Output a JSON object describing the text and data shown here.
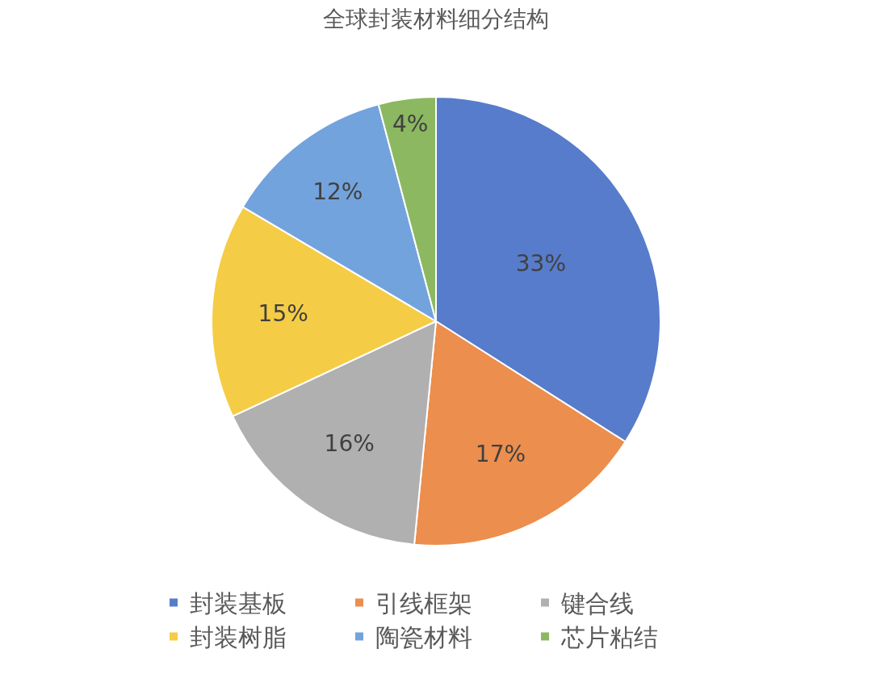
{
  "chart_data": {
    "type": "pie",
    "title": "全球封装材料细分结构",
    "categories": [
      "封装基板",
      "引线框架",
      "键合线",
      "封装树脂",
      "陶瓷材料",
      "芯片粘结"
    ],
    "values": [
      33,
      17,
      16,
      15,
      12,
      4
    ],
    "colors": [
      "#577ccb",
      "#ec8e4d",
      "#b0b0b0",
      "#f5cc45",
      "#73a3dc",
      "#8bb860"
    ],
    "value_labels": [
      "33%",
      "17%",
      "16%",
      "15%",
      "12%",
      "4%"
    ],
    "legend": "bottom"
  }
}
